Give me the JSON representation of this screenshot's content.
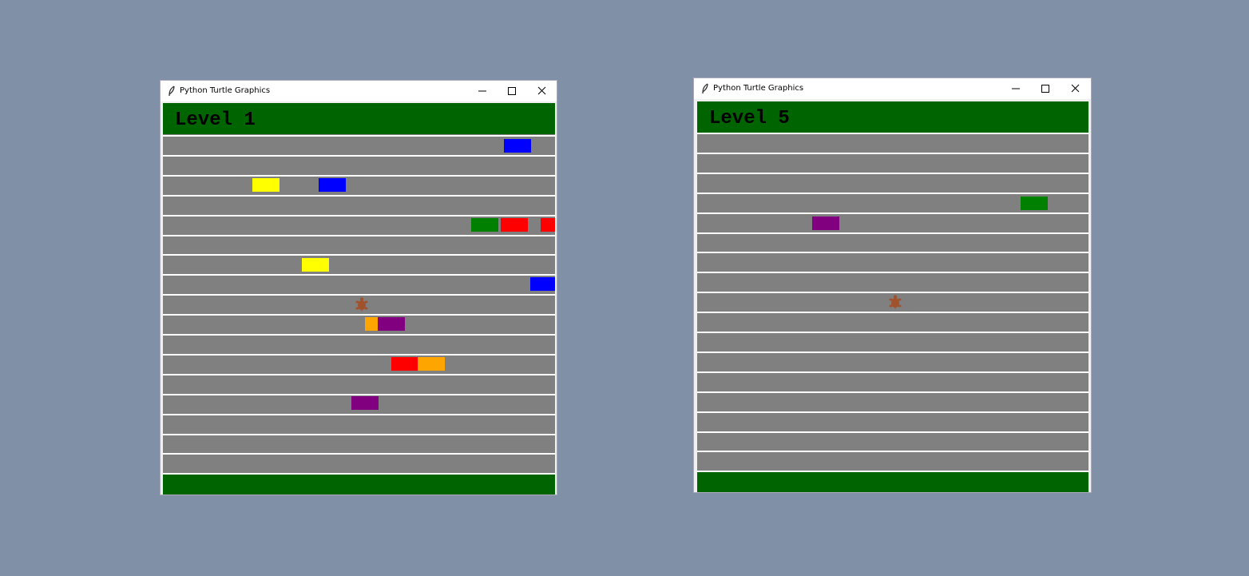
{
  "windows": [
    {
      "title": "Python Turtle Graphics",
      "level": "Level 1"
    },
    {
      "title": "Python Turtle Graphics",
      "level": "Level 5"
    }
  ]
}
